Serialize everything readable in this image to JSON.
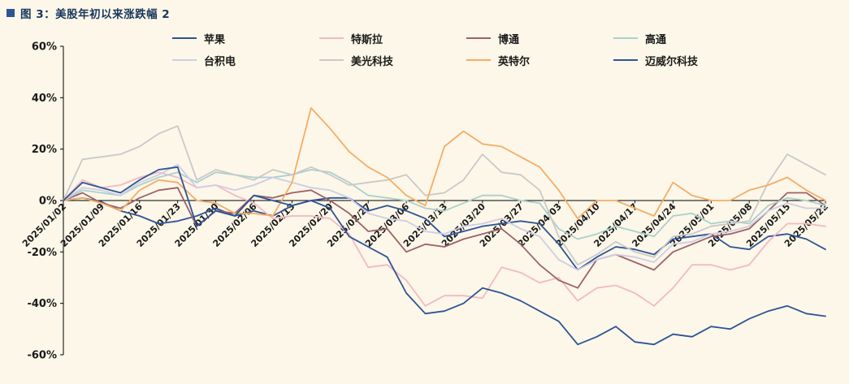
{
  "title": "图 3：美股年初以来涨跌幅 2",
  "colors": {
    "background": "#fcf7e8",
    "title_text": "#17365d",
    "title_bullet": "#2e5496",
    "axis": "#000000",
    "tick_label": "#1a1a1a"
  },
  "chart_data": {
    "type": "line",
    "title": "美股年初以来涨跌幅 2",
    "xlabel": "",
    "ylabel": "",
    "ylim": [
      -60,
      60
    ],
    "y_ticks": [
      "60%",
      "40%",
      "20%",
      "0%",
      "-20%",
      "-40%",
      "-60%"
    ],
    "grid": false,
    "legend_position": "top",
    "x_tick_labels": [
      "2025/01/02",
      "2025/01/09",
      "2025/01/16",
      "2025/01/23",
      "2025/01/30",
      "2025/02/06",
      "2025/02/13",
      "2025/02/20",
      "2025/02/27",
      "2025/03/06",
      "2025/03/13",
      "2025/03/20",
      "2025/03/27",
      "2025/04/03",
      "2025/04/10",
      "2025/04/17",
      "2025/04/24",
      "2025/05/01",
      "2025/05/08",
      "2025/05/15",
      "2025/05/22"
    ],
    "x": [
      "2025/01/02",
      "2025/01/06",
      "2025/01/09",
      "2025/01/13",
      "2025/01/16",
      "2025/01/21",
      "2025/01/23",
      "2025/01/27",
      "2025/01/30",
      "2025/02/03",
      "2025/02/06",
      "2025/02/10",
      "2025/02/13",
      "2025/02/18",
      "2025/02/20",
      "2025/02/24",
      "2025/02/27",
      "2025/03/03",
      "2025/03/06",
      "2025/03/10",
      "2025/03/13",
      "2025/03/17",
      "2025/03/20",
      "2025/03/24",
      "2025/03/27",
      "2025/03/31",
      "2025/04/03",
      "2025/04/07",
      "2025/04/10",
      "2025/04/14",
      "2025/04/17",
      "2025/04/21",
      "2025/04/24",
      "2025/04/28",
      "2025/05/01",
      "2025/05/05",
      "2025/05/08",
      "2025/05/12",
      "2025/05/15",
      "2025/05/19",
      "2025/05/22"
    ],
    "unit": "percent",
    "series": [
      {
        "name": "苹果",
        "color": "#2e5496",
        "values": [
          0,
          1,
          -0.5,
          -4,
          -6,
          -9,
          -8,
          -6,
          -3,
          -6,
          -4,
          -6,
          -2,
          0,
          1,
          1,
          -4,
          -2,
          -4,
          -7,
          -14,
          -12,
          -10,
          -9,
          -8,
          -9,
          -17,
          -27,
          -22,
          -18,
          -19,
          -21,
          -15,
          -14,
          -13,
          -18,
          -19,
          -14,
          -13,
          -15,
          -19
        ]
      },
      {
        "name": "特斯拉",
        "color": "#f3b9c3",
        "values": [
          0,
          8,
          5,
          6,
          9,
          11,
          9,
          5,
          6,
          2,
          -1,
          -7,
          -6,
          -6,
          -7,
          -13,
          -26,
          -25,
          -31,
          -41,
          -37,
          -37,
          -38,
          -26,
          -28,
          -32,
          -30,
          -39,
          -34,
          -33,
          -36,
          -41,
          -34,
          -25,
          -25,
          -27,
          -25,
          -16,
          -9,
          -9,
          -10
        ]
      },
      {
        "name": "博通",
        "color": "#9d6169",
        "values": [
          0,
          3,
          -1,
          -3,
          1,
          4,
          5,
          -10,
          -4,
          -5,
          2,
          1,
          3,
          4,
          0,
          -5,
          -12,
          -11,
          -20,
          -17,
          -18,
          -15,
          -13,
          -11,
          -17,
          -25,
          -31,
          -34,
          -23,
          -21,
          -24,
          -27,
          -20,
          -17,
          -14,
          -13,
          -11,
          -4,
          3,
          3,
          -2
        ]
      },
      {
        "name": "高通",
        "color": "#abd0cf",
        "values": [
          0,
          4,
          3,
          2,
          6,
          9,
          11,
          7,
          11,
          10,
          9,
          9,
          10,
          12,
          11,
          7,
          2,
          1,
          0,
          -3,
          -4,
          -1,
          2,
          2,
          0,
          -1,
          -11,
          -15,
          -13,
          -10,
          -12,
          -14,
          -6,
          -5,
          -9,
          -8,
          -9,
          -2,
          1,
          0,
          -2
        ]
      },
      {
        "name": "台积电",
        "color": "#cfcce6",
        "values": [
          0,
          5,
          4,
          2,
          7,
          10,
          14,
          5,
          6,
          4,
          6,
          9,
          7,
          5,
          4,
          1,
          -5,
          -7,
          -8,
          -12,
          -13,
          -10,
          -9,
          -7,
          -11,
          -14,
          -23,
          -27,
          -23,
          -21,
          -22,
          -24,
          -17,
          -16,
          -13,
          -12,
          -10,
          -4,
          -1,
          -3,
          -3
        ]
      },
      {
        "name": "美光科技",
        "color": "#c9c9c9",
        "values": [
          0,
          16,
          17,
          18,
          21,
          26,
          29,
          8,
          12,
          10,
          8,
          12,
          10,
          13,
          10,
          6,
          7,
          8,
          10,
          2,
          3,
          8,
          18,
          11,
          10,
          4,
          -14,
          -25,
          -21,
          -16,
          -20,
          -22,
          -14,
          -13,
          -10,
          -9,
          -8,
          7,
          18,
          14,
          10
        ]
      },
      {
        "name": "英特尔",
        "color": "#f4ad67",
        "values": [
          0,
          1,
          -1,
          -4,
          4,
          8,
          7,
          0,
          -1,
          -5,
          -5,
          -6,
          7,
          36,
          28,
          19,
          13,
          9,
          2,
          -2,
          21,
          27,
          22,
          21,
          17,
          13,
          4,
          -7,
          0,
          0,
          -3,
          -6,
          7,
          2,
          0,
          0,
          4,
          6,
          9,
          4,
          0
        ]
      },
      {
        "name": "迈威尔科技",
        "color": "#2e5496",
        "values": [
          0,
          7,
          5,
          3,
          8,
          12,
          13,
          -10,
          -4,
          -6,
          2,
          0,
          -2,
          0,
          -3,
          -14,
          -18,
          -22,
          -36,
          -44,
          -43,
          -40,
          -34,
          -36,
          -39,
          -43,
          -47,
          -56,
          -53,
          -49,
          -55,
          -56,
          -52,
          -53,
          -49,
          -50,
          -46,
          -43,
          -41,
          -44,
          -45
        ]
      }
    ]
  }
}
